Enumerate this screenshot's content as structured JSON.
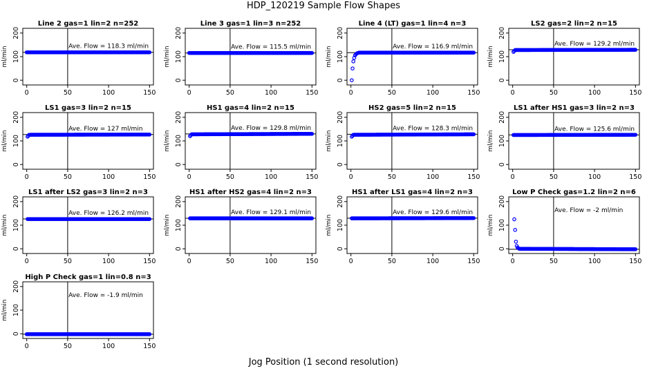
{
  "figure": {
    "title": "HDP_120219  Sample Flow Shapes",
    "xlabel": "Jog Position (1 second resolution)",
    "ylabel": "ml/min"
  },
  "chart_data": [
    {
      "type": "scatter",
      "title": "Line 2 gas=1 lin=2 n=252",
      "annotation": "Ave. Flow =  118.3  ml/min",
      "ave_flow": 118.3,
      "vline_x": 50,
      "xlim": [
        0,
        150
      ],
      "ylim": [
        -20,
        220
      ],
      "xticks": [
        0,
        50,
        100,
        150
      ],
      "yticks": [
        0,
        100,
        200
      ],
      "x": [
        0,
        150
      ],
      "y": [
        118.3,
        118.3
      ]
    },
    {
      "type": "scatter",
      "title": "Line 3 gas=1 lin=3 n=252",
      "annotation": "Ave. Flow =  115.5  ml/min",
      "ave_flow": 115.5,
      "vline_x": 50,
      "xlim": [
        0,
        150
      ],
      "ylim": [
        -20,
        220
      ],
      "xticks": [
        0,
        50,
        100,
        150
      ],
      "yticks": [
        0,
        100,
        200
      ],
      "x": [
        0,
        150
      ],
      "y": [
        115.5,
        115.5
      ]
    },
    {
      "type": "scatter",
      "title": "Line 4 (LT) gas=1 lin=4 n=3",
      "annotation": "Ave. Flow =  116.9  ml/min",
      "ave_flow": 116.9,
      "vline_x": 50,
      "xlim": [
        0,
        150
      ],
      "ylim": [
        -20,
        220
      ],
      "xticks": [
        0,
        50,
        100,
        150
      ],
      "yticks": [
        0,
        100,
        200
      ],
      "x": [
        1,
        2,
        3,
        4,
        5,
        6,
        7,
        8,
        9,
        10,
        150
      ],
      "y": [
        0,
        50,
        80,
        95,
        105,
        110,
        113,
        115,
        116,
        117,
        117
      ]
    },
    {
      "type": "scatter",
      "title": "LS2 gas=2 lin=2 n=15",
      "annotation": "Ave. Flow =  129.2  ml/min",
      "ave_flow": 129.2,
      "vline_x": 50,
      "xlim": [
        0,
        150
      ],
      "ylim": [
        -20,
        220
      ],
      "xticks": [
        0,
        50,
        100,
        150
      ],
      "yticks": [
        0,
        100,
        200
      ],
      "x": [
        1,
        3,
        150
      ],
      "y": [
        120,
        128,
        129
      ]
    },
    {
      "type": "scatter",
      "title": "LS1 gas=3 lin=2 n=15",
      "annotation": "Ave. Flow =  127  ml/min",
      "ave_flow": 127,
      "vline_x": 50,
      "xlim": [
        0,
        150
      ],
      "ylim": [
        -20,
        220
      ],
      "xticks": [
        0,
        50,
        100,
        150
      ],
      "yticks": [
        0,
        100,
        200
      ],
      "x": [
        1,
        3,
        150
      ],
      "y": [
        118,
        126,
        127
      ]
    },
    {
      "type": "scatter",
      "title": "HS1 gas=4 lin=2 n=15",
      "annotation": "Ave. Flow =  129.8  ml/min",
      "ave_flow": 129.8,
      "vline_x": 50,
      "xlim": [
        0,
        150
      ],
      "ylim": [
        -20,
        220
      ],
      "xticks": [
        0,
        50,
        100,
        150
      ],
      "yticks": [
        0,
        100,
        200
      ],
      "x": [
        1,
        3,
        150
      ],
      "y": [
        120,
        128,
        130
      ]
    },
    {
      "type": "scatter",
      "title": "HS2 gas=5 lin=2 n=15",
      "annotation": "Ave. Flow =  128.3  ml/min",
      "ave_flow": 128.3,
      "vline_x": 50,
      "xlim": [
        0,
        150
      ],
      "ylim": [
        -20,
        220
      ],
      "xticks": [
        0,
        50,
        100,
        150
      ],
      "yticks": [
        0,
        100,
        200
      ],
      "x": [
        1,
        3,
        150
      ],
      "y": [
        118,
        126,
        128
      ]
    },
    {
      "type": "scatter",
      "title": "LS1 after HS1 gas=3 lin=2 n=3",
      "annotation": "Ave. Flow =  125.6  ml/min",
      "ave_flow": 125.6,
      "vline_x": 50,
      "xlim": [
        0,
        150
      ],
      "ylim": [
        -20,
        220
      ],
      "xticks": [
        0,
        50,
        100,
        150
      ],
      "yticks": [
        0,
        100,
        200
      ],
      "x": [
        1,
        150
      ],
      "y": [
        125,
        126
      ]
    },
    {
      "type": "scatter",
      "title": "LS1 after LS2 gas=3 lin=2 n=3",
      "annotation": "Ave. Flow =  126.2  ml/min",
      "ave_flow": 126.2,
      "vline_x": 50,
      "xlim": [
        0,
        150
      ],
      "ylim": [
        -20,
        220
      ],
      "xticks": [
        0,
        50,
        100,
        150
      ],
      "yticks": [
        0,
        100,
        200
      ],
      "x": [
        1,
        150
      ],
      "y": [
        126,
        126
      ]
    },
    {
      "type": "scatter",
      "title": "HS1 after HS2 gas=4 lin=2 n=3",
      "annotation": "Ave. Flow =  129.1  ml/min",
      "ave_flow": 129.1,
      "vline_x": 50,
      "xlim": [
        0,
        150
      ],
      "ylim": [
        -20,
        220
      ],
      "xticks": [
        0,
        50,
        100,
        150
      ],
      "yticks": [
        0,
        100,
        200
      ],
      "x": [
        1,
        150
      ],
      "y": [
        129,
        129
      ]
    },
    {
      "type": "scatter",
      "title": "HS1 after LS1 gas=4 lin=2 n=3",
      "annotation": "Ave. Flow =  129.6  ml/min",
      "ave_flow": 129.6,
      "vline_x": 50,
      "xlim": [
        0,
        150
      ],
      "ylim": [
        -20,
        220
      ],
      "xticks": [
        0,
        50,
        100,
        150
      ],
      "yticks": [
        0,
        100,
        200
      ],
      "x": [
        1,
        150
      ],
      "y": [
        129,
        130
      ]
    },
    {
      "type": "scatter",
      "title": "Low P Check gas=1.2 lin=2 n=6",
      "annotation": "Ave. Flow =  -2  ml/min",
      "ave_flow": -2,
      "vline_x": 50,
      "xlim": [
        0,
        150
      ],
      "ylim": [
        -20,
        220
      ],
      "xticks": [
        0,
        50,
        100,
        150
      ],
      "yticks": [
        0,
        100,
        200
      ],
      "x": [
        2,
        3,
        4,
        5,
        6,
        7,
        8,
        150
      ],
      "y": [
        125,
        80,
        30,
        12,
        5,
        2,
        0,
        -2
      ]
    },
    {
      "type": "scatter",
      "title": "High P Check gas=1 lin=0.8 n=3",
      "annotation": "Ave. Flow =  -1.9  ml/min",
      "ave_flow": -1.9,
      "vline_x": 50,
      "xlim": [
        0,
        150
      ],
      "ylim": [
        -20,
        220
      ],
      "xticks": [
        0,
        50,
        100,
        150
      ],
      "yticks": [
        0,
        100,
        200
      ],
      "x": [
        0,
        150
      ],
      "y": [
        -2,
        -2
      ]
    }
  ],
  "colors": {
    "points": "#0000ff",
    "axes": "#000000",
    "background": "#ffffff"
  }
}
